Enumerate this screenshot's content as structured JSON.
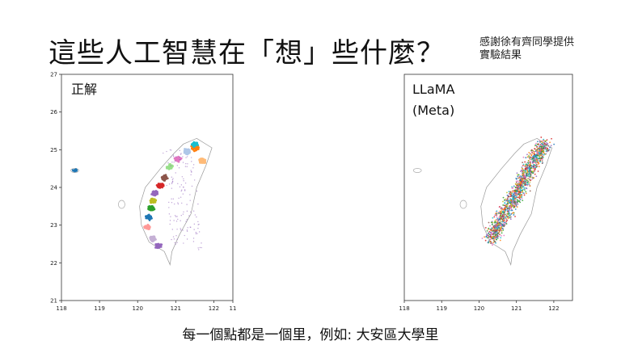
{
  "slide": {
    "title": "這些人工智慧在「想」些什麼？",
    "credit_lines": [
      "感謝徐有齊同學提供",
      "實驗結果"
    ],
    "caption": "每一個點都是一個里，例如: 大安區大學里"
  },
  "chart_data": [
    {
      "type": "scatter",
      "panel_label": "正解",
      "xlabel": "",
      "ylabel": "",
      "xlim": [
        118,
        122.5
      ],
      "ylim": [
        21,
        27
      ],
      "x_ticks": [
        "118",
        "119",
        "120",
        "121",
        "122",
        "11"
      ],
      "y_ticks": [
        "21",
        "22",
        "23",
        "24",
        "25",
        "26",
        "27"
      ],
      "grid": false,
      "description_points": "township centroids of Taiwan, colored by county",
      "series": [
        {
          "color": "#ff7f0e"
        },
        {
          "color": "#1f77b4"
        },
        {
          "color": "#2ca02c"
        },
        {
          "color": "#d62728"
        },
        {
          "color": "#9467bd"
        },
        {
          "color": "#8c564b"
        },
        {
          "color": "#e377c2"
        },
        {
          "color": "#bcbd22"
        },
        {
          "color": "#17becf"
        }
      ]
    },
    {
      "type": "scatter",
      "panel_label_lines": [
        "LLaMA",
        "(Meta)"
      ],
      "xlabel": "",
      "ylabel": "",
      "xlim": [
        118,
        122.5
      ],
      "ylim": [
        21,
        27
      ],
      "x_ticks": [
        "118",
        "119",
        "120",
        "121",
        "122"
      ],
      "y_ticks": [],
      "grid": false
    }
  ]
}
